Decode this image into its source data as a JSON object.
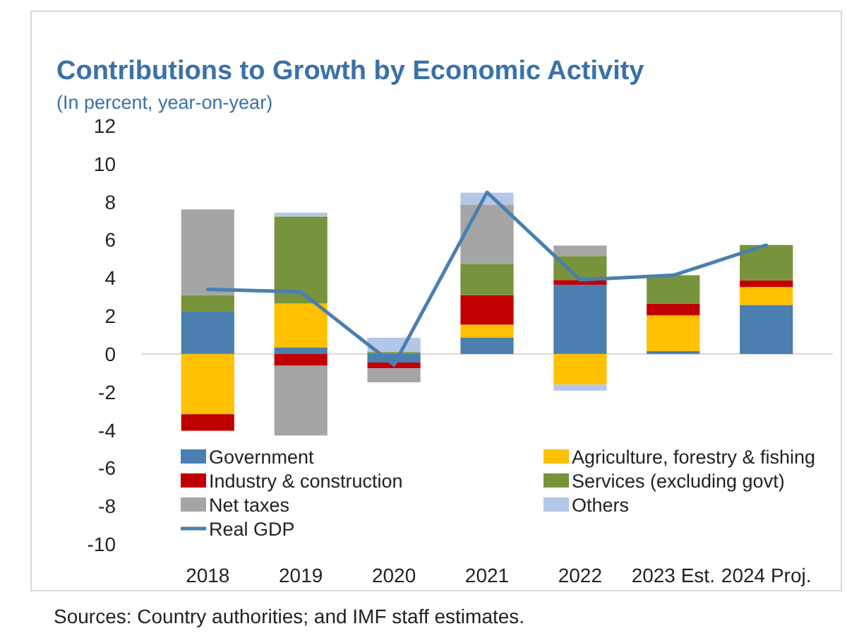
{
  "chart_data": {
    "type": "bar",
    "title": "Contributions to Growth by Economic Activity",
    "subtitle": "(In percent, year-on-year)",
    "categories": [
      "2018",
      "2019",
      "2020",
      "2021",
      "2022",
      "2023 Est.",
      "2024 Proj."
    ],
    "stacked": true,
    "series": [
      {
        "name": "Government",
        "color": "#4a7fb0",
        "values": [
          2.23,
          0.35,
          -0.45,
          0.87,
          3.64,
          0.15,
          2.58
        ]
      },
      {
        "name": "Agriculture, forestry & fishing",
        "color": "#ffc000",
        "values": [
          -3.17,
          2.3,
          null,
          0.67,
          -1.61,
          1.88,
          0.94
        ]
      },
      {
        "name": "Industry & construction",
        "color": "#c00000",
        "values": [
          -0.87,
          -0.62,
          -0.3,
          1.56,
          0.25,
          0.62,
          0.35
        ]
      },
      {
        "name": "Services (excluding govt)",
        "color": "#77933c",
        "values": [
          0.87,
          4.58,
          0.1,
          1.64,
          1.26,
          1.49,
          1.86
        ]
      },
      {
        "name": "Net taxes",
        "color": "#a5a5a5",
        "values": [
          4.5,
          -3.67,
          -0.74,
          3.12,
          0.55,
          null,
          null
        ]
      },
      {
        "name": "Others",
        "color": "#b4c7e7",
        "values": [
          null,
          0.2,
          0.75,
          0.62,
          -0.32,
          null,
          null
        ]
      },
      {
        "name": "Real GDP",
        "type": "line",
        "color": "#4a7fb0",
        "values": [
          3.4,
          3.27,
          -0.57,
          8.5,
          3.9,
          4.14,
          5.72
        ]
      }
    ],
    "ylim": [
      -10,
      12
    ],
    "yticks": [
      -10,
      -8,
      -6,
      -4,
      -2,
      0,
      2,
      4,
      6,
      8,
      10,
      12
    ],
    "legend": "bottom",
    "annotations": [
      "Sources: Country authorities; and IMF staff estimates."
    ]
  }
}
